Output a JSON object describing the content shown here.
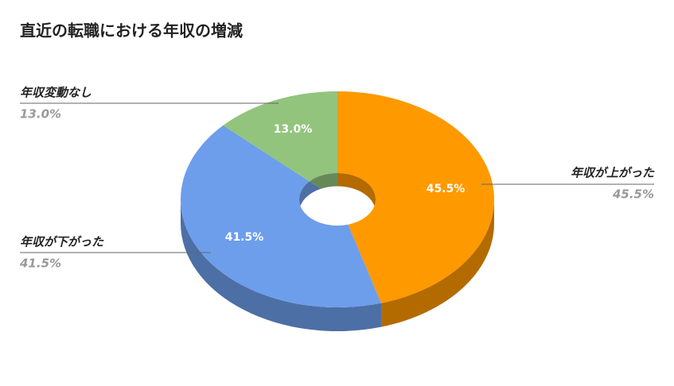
{
  "chart_data": {
    "type": "pie",
    "title": "直近の転職における年収の増減",
    "categories": [
      "年収が上がった",
      "年収が下がった",
      "年収変動なし"
    ],
    "values": [
      45.5,
      41.5,
      13.0
    ],
    "value_labels": [
      "45.5%",
      "41.5%",
      "13.0%"
    ],
    "colors": [
      "#ff9900",
      "#6d9eeb",
      "#93c47d"
    ],
    "donut": true
  }
}
